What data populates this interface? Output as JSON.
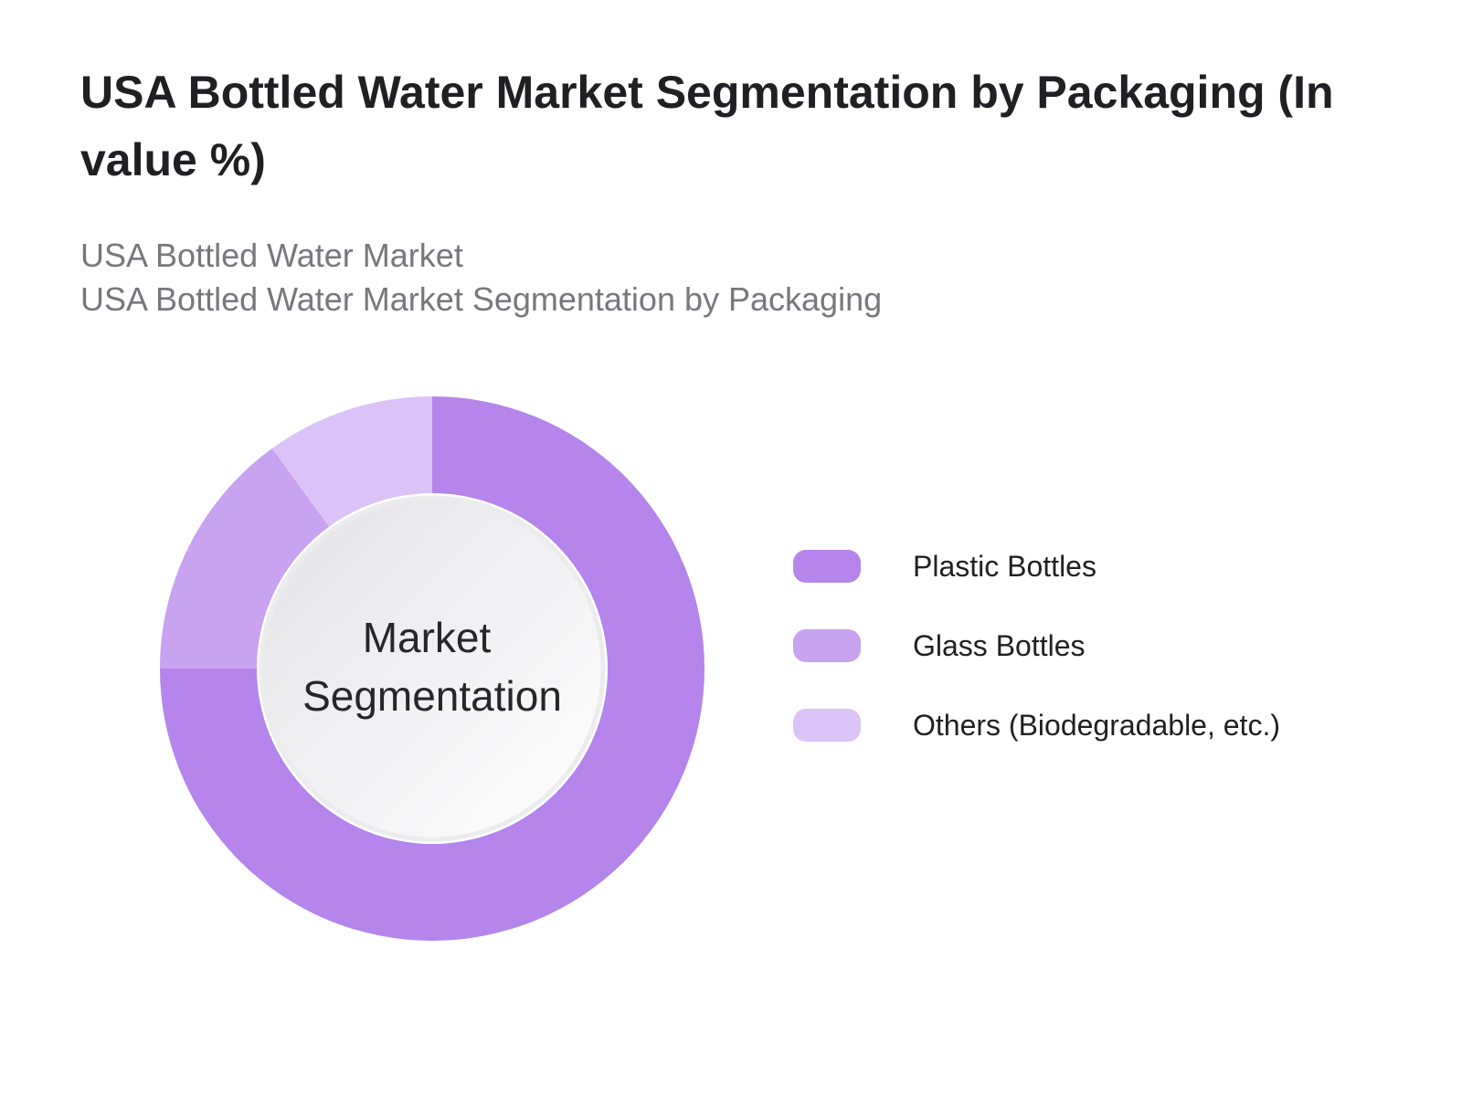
{
  "title": "USA Bottled Water Market Segmentation by Packaging (In value %)",
  "subtitle_lines": [
    "USA Bottled Water Market",
    "USA Bottled Water Market Segmentation by Packaging"
  ],
  "chart_data": {
    "type": "pie",
    "style": "donut",
    "center_label_lines": [
      "Market",
      "Segmentation"
    ],
    "legend_position": "right",
    "slices": [
      {
        "label": "Plastic Bottles",
        "value": 75,
        "color": "#b585ec"
      },
      {
        "label": "Glass Bottles",
        "value": 15,
        "color": "#c9a2f0"
      },
      {
        "label": "Others (Biodegradable, etc.)",
        "value": 10,
        "color": "#dcc3f7"
      }
    ]
  }
}
